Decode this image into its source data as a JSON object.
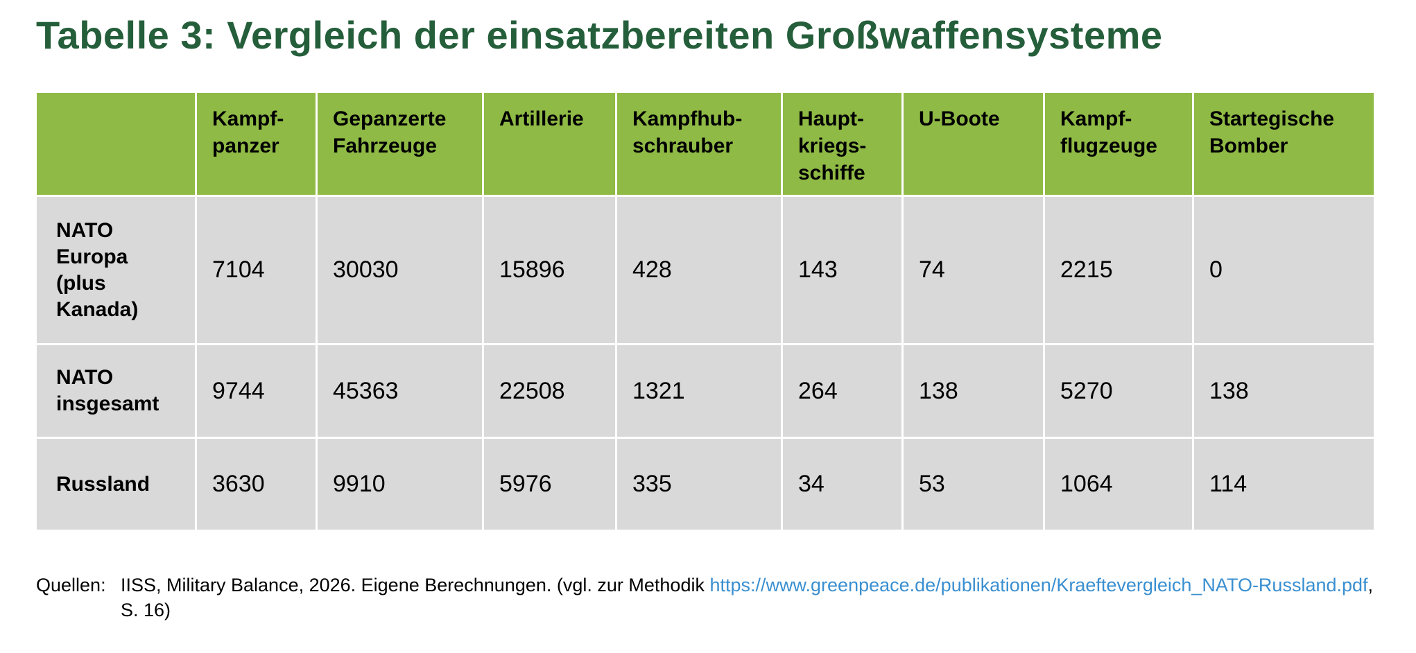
{
  "title": "Tabelle 3: Vergleich der einsatzbereiten Großwaffensysteme",
  "table": {
    "columns": [
      [
        "Kampf-",
        "panzer"
      ],
      [
        "Gepanzerte",
        "Fahrzeuge"
      ],
      [
        "Artillerie"
      ],
      [
        "Kampfhub-",
        "schrauber"
      ],
      [
        "Haupt-",
        "kriegs-",
        "schiffe"
      ],
      [
        "U-Boote"
      ],
      [
        "Kampf-",
        "flugzeuge"
      ],
      [
        "Startegische",
        "Bomber"
      ]
    ],
    "rows": [
      {
        "label": [
          "NATO",
          "Europa",
          "(plus",
          "Kanada)"
        ],
        "values": [
          7104,
          30030,
          15896,
          428,
          143,
          74,
          2215,
          0
        ]
      },
      {
        "label": [
          "NATO",
          "insgesamt"
        ],
        "values": [
          9744,
          45363,
          22508,
          1321,
          264,
          138,
          5270,
          138
        ]
      },
      {
        "label": [
          "Russland"
        ],
        "values": [
          3630,
          9910,
          5976,
          335,
          34,
          53,
          1064,
          114
        ]
      }
    ]
  },
  "footnote": {
    "label": "Quellen:",
    "text": "IISS, Military Balance, 2026. Eigene Berechnungen. (vgl. zur Methodik",
    "link": "https://www.greenpeace.de/publikationen/Kraeftevergleich_NATO-Russland.pdf",
    "after": ", S. 16)"
  }
}
